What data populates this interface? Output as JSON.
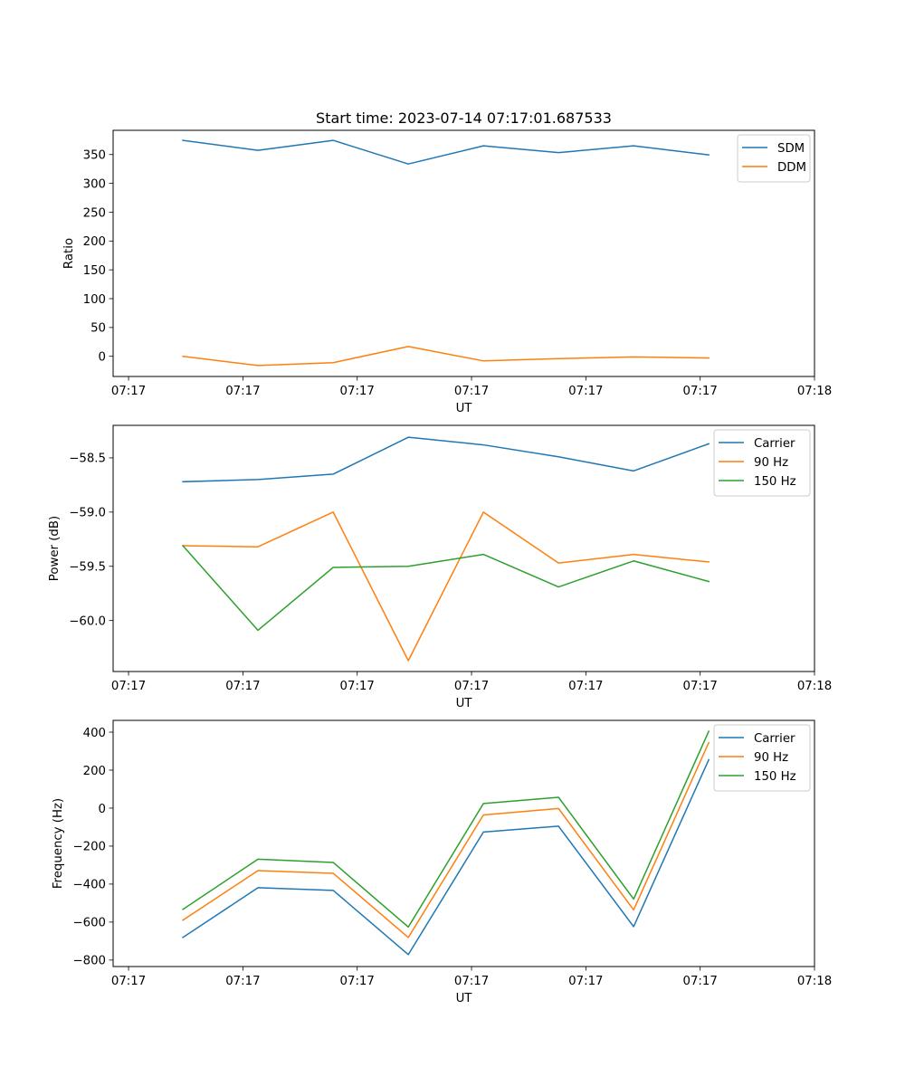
{
  "figure_title": "Start time: 2023-07-14 07:17:01.687533",
  "chart_data": [
    {
      "type": "line",
      "title": "Start time: 2023-07-14 07:17:01.687533",
      "xlabel": "UT",
      "ylabel": "Ratio",
      "x_units": "seconds after 07:17:00",
      "x": [
        4.75,
        11.32,
        17.9,
        24.47,
        31.04,
        37.61,
        44.18,
        50.75
      ],
      "xlim": [
        -1.35,
        60.0
      ],
      "xticks": [
        0,
        10,
        20,
        30,
        40,
        50,
        60
      ],
      "xtick_labels": [
        "07:17",
        "07:17",
        "07:17",
        "07:17",
        "07:17",
        "07:17",
        "07:18"
      ],
      "ylim": [
        -35,
        392
      ],
      "yticks": [
        0,
        50,
        100,
        150,
        200,
        250,
        300,
        350
      ],
      "ytick_labels": [
        "0",
        "50",
        "100",
        "150",
        "200",
        "250",
        "300",
        "350"
      ],
      "grid": false,
      "legend_position": "top-right",
      "series": [
        {
          "name": "SDM",
          "color": "#1f77b4",
          "values": [
            374.6,
            357.3,
            374.6,
            333.6,
            365.1,
            353.3,
            365.1,
            349.3
          ]
        },
        {
          "name": "DDM",
          "color": "#ff7f0e",
          "values": [
            0,
            -16,
            -11,
            17,
            -8,
            -4,
            -1,
            -3
          ]
        }
      ]
    },
    {
      "type": "line",
      "title": "",
      "xlabel": "UT",
      "ylabel": "Power (dB)",
      "x_units": "seconds after 07:17:00",
      "x": [
        4.75,
        11.32,
        17.9,
        24.47,
        31.04,
        37.61,
        44.18,
        50.75
      ],
      "xlim": [
        -1.35,
        60.0
      ],
      "xticks": [
        0,
        10,
        20,
        30,
        40,
        50,
        60
      ],
      "xtick_labels": [
        "07:17",
        "07:17",
        "07:17",
        "07:17",
        "07:17",
        "07:17",
        "07:18"
      ],
      "ylim": [
        -60.47,
        -58.2
      ],
      "yticks": [
        -60.0,
        -59.5,
        -59.0,
        -58.5
      ],
      "ytick_labels": [
        "−60.0",
        "−59.5",
        "−59.0",
        "−58.5"
      ],
      "grid": false,
      "legend_position": "top-right",
      "series": [
        {
          "name": "Carrier",
          "color": "#1f77b4",
          "values": [
            -58.72,
            -58.7,
            -58.65,
            -58.31,
            -58.38,
            -58.49,
            -58.62,
            -58.37
          ]
        },
        {
          "name": "90 Hz",
          "color": "#ff7f0e",
          "values": [
            -59.31,
            -59.32,
            -59.0,
            -60.37,
            -59.0,
            -59.47,
            -59.39,
            -59.46
          ]
        },
        {
          "name": "150 Hz",
          "color": "#2ca02c",
          "values": [
            -59.31,
            -60.09,
            -59.51,
            -59.5,
            -59.39,
            -59.69,
            -59.45,
            -59.64
          ]
        }
      ]
    },
    {
      "type": "line",
      "title": "",
      "xlabel": "UT",
      "ylabel": "Frequency (Hz)",
      "x_units": "seconds after 07:17:00",
      "x": [
        4.75,
        11.32,
        17.9,
        24.47,
        31.04,
        37.61,
        44.18,
        50.75
      ],
      "xlim": [
        -1.35,
        60.0
      ],
      "xticks": [
        0,
        10,
        20,
        30,
        40,
        50,
        60
      ],
      "xtick_labels": [
        "07:17",
        "07:17",
        "07:17",
        "07:17",
        "07:17",
        "07:17",
        "07:18"
      ],
      "ylim": [
        -834,
        462
      ],
      "yticks": [
        -800,
        -600,
        -400,
        -200,
        0,
        200,
        400
      ],
      "ytick_labels": [
        "−800",
        "−600",
        "−400",
        "−200",
        "0",
        "200",
        "400"
      ],
      "grid": false,
      "legend_position": "top-right",
      "series": [
        {
          "name": "Carrier",
          "color": "#1f77b4",
          "values": [
            -681,
            -419,
            -433,
            -771,
            -126,
            -95,
            -624,
            255
          ]
        },
        {
          "name": "90 Hz",
          "color": "#ff7f0e",
          "values": [
            -590,
            -329,
            -343,
            -681,
            -36,
            -2,
            -536,
            345
          ]
        },
        {
          "name": "150 Hz",
          "color": "#2ca02c",
          "values": [
            -533,
            -269,
            -286,
            -626,
            24,
            57,
            -479,
            405
          ]
        }
      ]
    }
  ]
}
